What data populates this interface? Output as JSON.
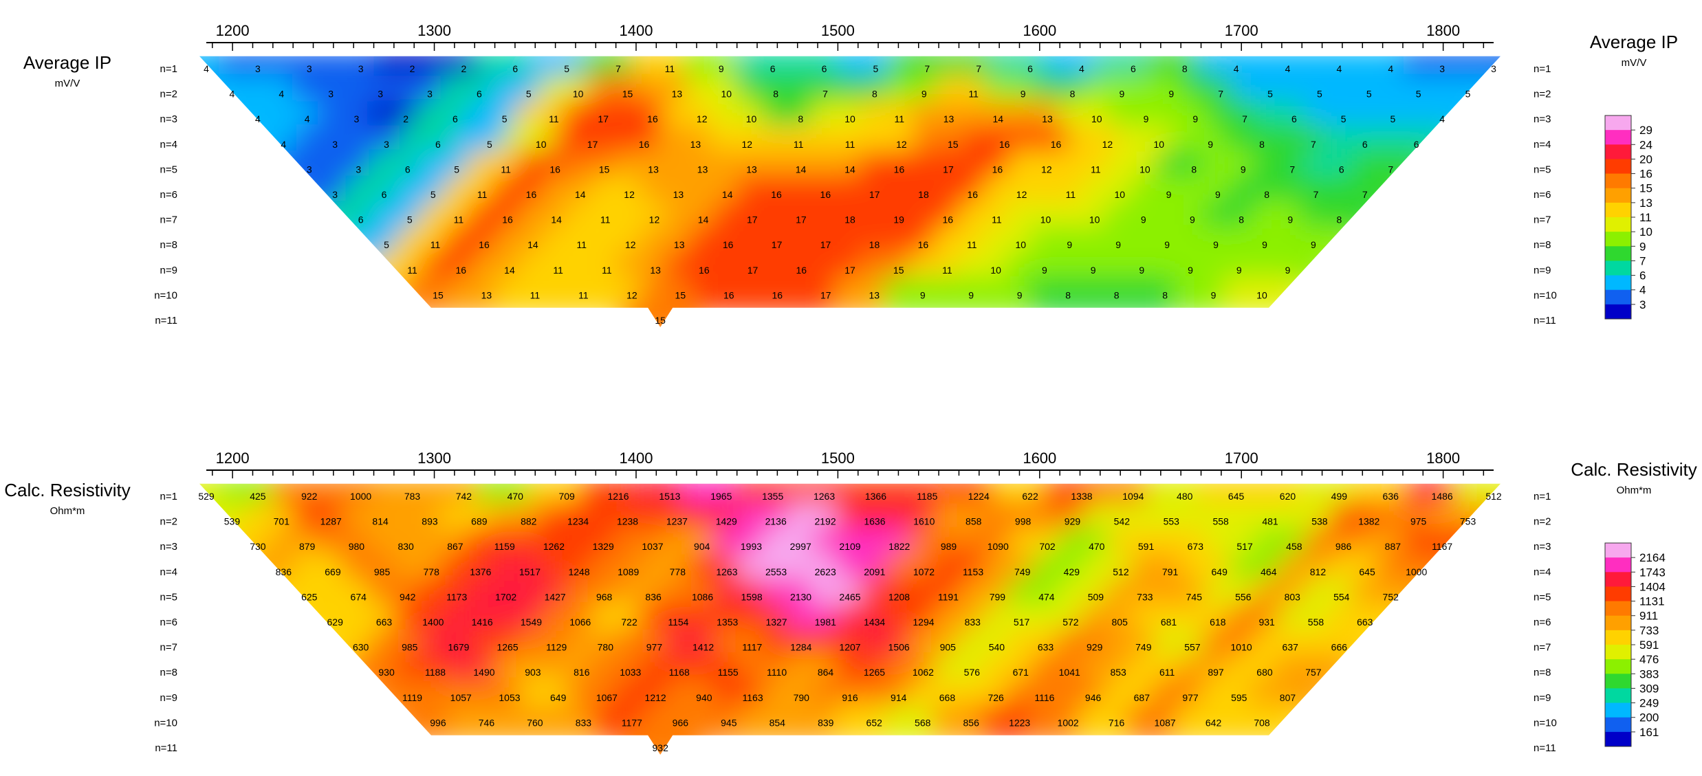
{
  "chart_data": [
    {
      "type": "heatmap",
      "title": "Average IP",
      "units": "mV/V",
      "x_ticks": [
        1200,
        1300,
        1400,
        1500,
        1600,
        1700,
        1800
      ],
      "xlim": [
        1187,
        1825
      ],
      "row_labels": [
        "n=1",
        "n=2",
        "n=3",
        "n=4",
        "n=5",
        "n=6",
        "n=7",
        "n=8",
        "n=9",
        "n=10",
        "n=11"
      ],
      "rows": [
        [
          4,
          3,
          3,
          3,
          2,
          2,
          6,
          5,
          7,
          11,
          9,
          6,
          6,
          5,
          7,
          7,
          6,
          4,
          6,
          8,
          4,
          4,
          4,
          4,
          3,
          3
        ],
        [
          4,
          4,
          3,
          3,
          3,
          6,
          5,
          10,
          15,
          13,
          10,
          8,
          7,
          8,
          9,
          11,
          9,
          8,
          9,
          9,
          7,
          5,
          5,
          5,
          5,
          5
        ],
        [
          4,
          4,
          3,
          2,
          6,
          5,
          11,
          17,
          16,
          12,
          10,
          8,
          10,
          11,
          13,
          14,
          13,
          10,
          9,
          9,
          7,
          6,
          5,
          5,
          4
        ],
        [
          4,
          3,
          3,
          6,
          5,
          10,
          17,
          16,
          13,
          12,
          11,
          11,
          12,
          15,
          16,
          16,
          12,
          10,
          9,
          8,
          7,
          6,
          6
        ],
        [
          3,
          3,
          6,
          5,
          11,
          16,
          15,
          13,
          13,
          13,
          14,
          14,
          16,
          17,
          16,
          12,
          11,
          10,
          8,
          9,
          7,
          6,
          7
        ],
        [
          3,
          6,
          5,
          11,
          16,
          14,
          12,
          13,
          14,
          16,
          16,
          17,
          18,
          16,
          12,
          11,
          10,
          9,
          9,
          8,
          7,
          7
        ],
        [
          6,
          5,
          11,
          16,
          14,
          11,
          12,
          14,
          17,
          17,
          18,
          19,
          16,
          11,
          10,
          10,
          9,
          9,
          8,
          9,
          8
        ],
        [
          5,
          11,
          16,
          14,
          11,
          12,
          13,
          16,
          17,
          17,
          18,
          16,
          11,
          10,
          9,
          9,
          9,
          9,
          9,
          9
        ],
        [
          11,
          16,
          14,
          11,
          11,
          13,
          16,
          17,
          16,
          17,
          15,
          11,
          10,
          9,
          9,
          9,
          9,
          9,
          9
        ],
        [
          15,
          13,
          11,
          11,
          12,
          15,
          16,
          16,
          17,
          13,
          9,
          9,
          9,
          8,
          8,
          8,
          9,
          10
        ],
        [
          15
        ]
      ],
      "colorbar": {
        "labels": [
          29,
          24,
          20,
          16,
          15,
          13,
          11,
          10,
          9,
          7,
          6,
          4,
          3
        ],
        "colors": [
          "#f7a8ee",
          "#ff2ec0",
          "#ff1a3a",
          "#ff3c00",
          "#ff7a00",
          "#ffa000",
          "#ffd200",
          "#e0f000",
          "#8cf000",
          "#2fd82f",
          "#00d8a0",
          "#00b8ff",
          "#1060f0",
          "#0000c8"
        ]
      }
    },
    {
      "type": "heatmap",
      "title": "Calc. Resistivity",
      "units": "Ohm*m",
      "x_ticks": [
        1200,
        1300,
        1400,
        1500,
        1600,
        1700,
        1800
      ],
      "xlim": [
        1187,
        1825
      ],
      "row_labels": [
        "n=1",
        "n=2",
        "n=3",
        "n=4",
        "n=5",
        "n=6",
        "n=7",
        "n=8",
        "n=9",
        "n=10",
        "n=11"
      ],
      "rows": [
        [
          529,
          425,
          922,
          1000,
          783,
          742,
          470,
          709,
          1216,
          1513,
          1965,
          1355,
          1263,
          1366,
          1185,
          1224,
          622,
          1338,
          1094,
          480,
          645,
          620,
          499,
          636,
          1486,
          512
        ],
        [
          539,
          701,
          1287,
          814,
          893,
          689,
          882,
          1234,
          1238,
          1237,
          1429,
          2136,
          2192,
          1636,
          1610,
          858,
          998,
          929,
          542,
          553,
          558,
          481,
          538,
          1382,
          975,
          753
        ],
        [
          730,
          879,
          980,
          830,
          867,
          1159,
          1262,
          1329,
          1037,
          904,
          1993,
          2997,
          2109,
          1822,
          989,
          1090,
          702,
          470,
          591,
          673,
          517,
          458,
          986,
          887,
          1167
        ],
        [
          836,
          669,
          985,
          778,
          1376,
          1517,
          1248,
          1089,
          778,
          1263,
          2553,
          2623,
          2091,
          1072,
          1153,
          749,
          429,
          512,
          791,
          649,
          464,
          812,
          645,
          1000
        ],
        [
          625,
          674,
          942,
          1173,
          1702,
          1427,
          968,
          836,
          1086,
          1598,
          2130,
          2465,
          1208,
          1191,
          799,
          474,
          509,
          733,
          745,
          556,
          803,
          554,
          752
        ],
        [
          629,
          663,
          1400,
          1416,
          1549,
          1066,
          722,
          1154,
          1353,
          1327,
          1981,
          1434,
          1294,
          833,
          517,
          572,
          805,
          681,
          618,
          931,
          558,
          663
        ],
        [
          630,
          985,
          1679,
          1265,
          1129,
          780,
          977,
          1412,
          1117,
          1284,
          1207,
          1506,
          905,
          540,
          633,
          929,
          749,
          557,
          1010,
          637,
          666
        ],
        [
          930,
          1188,
          1490,
          903,
          816,
          1033,
          1168,
          1155,
          1110,
          864,
          1265,
          1062,
          576,
          671,
          1041,
          853,
          611,
          897,
          680,
          757
        ],
        [
          1119,
          1057,
          1053,
          649,
          1067,
          1212,
          940,
          1163,
          790,
          916,
          914,
          668,
          726,
          1116,
          946,
          687,
          977,
          595,
          807
        ],
        [
          996,
          746,
          760,
          833,
          1177,
          966,
          945,
          854,
          839,
          652,
          568,
          856,
          1223,
          1002,
          716,
          1087,
          642,
          708
        ],
        [
          932
        ]
      ],
      "colorbar": {
        "labels": [
          2164,
          1743,
          1404,
          1131,
          911,
          733,
          591,
          476,
          383,
          309,
          249,
          200,
          161
        ],
        "colors": [
          "#f7a8ee",
          "#ff2ec0",
          "#ff1a3a",
          "#ff3c00",
          "#ff7a00",
          "#ffa000",
          "#ffd200",
          "#e0f000",
          "#8cf000",
          "#2fd82f",
          "#00d8a0",
          "#00b8ff",
          "#1060f0",
          "#0000c8"
        ]
      }
    }
  ]
}
